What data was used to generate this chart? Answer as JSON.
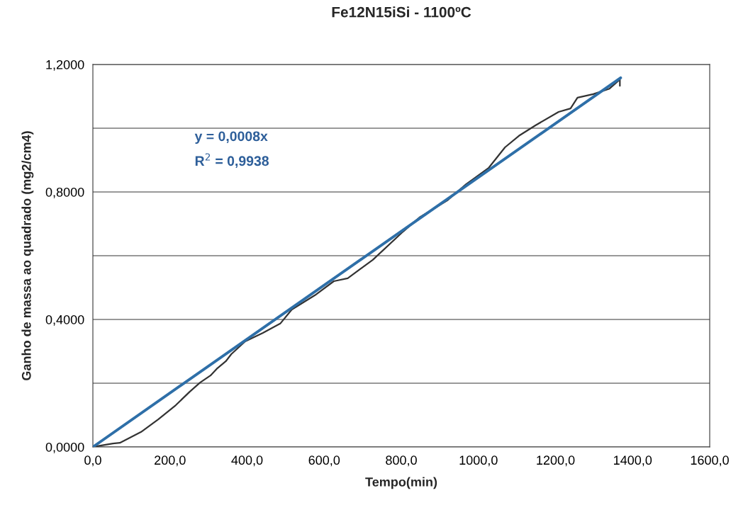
{
  "chart_data": {
    "type": "line",
    "title": "Fe12N15iSi - 1100ºC",
    "xlabel": "Tempo(min)",
    "ylabel": "Ganho de massa ao quadrado (mg2/cm4)",
    "series": [
      {
        "color": "#333333",
        "x": [
          0,
          52,
          70,
          125,
          170,
          215,
          251,
          278,
          305,
          323,
          345,
          359,
          377,
          395,
          441,
          486,
          516,
          576,
          625,
          661,
          726,
          805,
          847,
          919,
          968,
          1027,
          1069,
          1105,
          1148,
          1208,
          1239,
          1257,
          1298,
          1340,
          1367,
          1367
        ],
        "values": [
          0,
          0.011,
          0.013,
          0.047,
          0.087,
          0.131,
          0.173,
          0.202,
          0.224,
          0.247,
          0.269,
          0.291,
          0.311,
          0.331,
          0.358,
          0.387,
          0.431,
          0.476,
          0.52,
          0.529,
          0.587,
          0.676,
          0.72,
          0.773,
          0.824,
          0.876,
          0.94,
          0.976,
          1.009,
          1.051,
          1.062,
          1.096,
          1.107,
          1.124,
          1.153,
          1.133
        ]
      },
      {
        "color": "#2e6fa8",
        "x": [
          0,
          1369
        ],
        "values": [
          0,
          1.158
        ]
      }
    ],
    "annotations": [
      "y = 0,0008x",
      "R$^{2}$ = 0,9938"
    ],
    "xlim": [
      0,
      1600
    ],
    "ylim": [
      0,
      1.2
    ],
    "xticks": [
      {
        "value": 0,
        "label": "0,0"
      },
      {
        "value": 200,
        "label": "200,0"
      },
      {
        "value": 400,
        "label": "400,0"
      },
      {
        "value": 600,
        "label": "600,0"
      },
      {
        "value": 800,
        "label": "800,0"
      },
      {
        "value": 1000,
        "label": "1000,0"
      },
      {
        "value": 1200,
        "label": "1200,0"
      },
      {
        "value": 1400,
        "label": "1400,0"
      },
      {
        "value": 1600,
        "label": "1600,0"
      }
    ],
    "yticks": [
      {
        "value": 0,
        "label": "0,0000"
      },
      {
        "value": 0.2,
        "label": null
      },
      {
        "value": 0.4,
        "label": "0,4000"
      },
      {
        "value": 0.6,
        "label": null
      },
      {
        "value": 0.8,
        "label": "0,8000"
      },
      {
        "value": 1.0,
        "label": null
      },
      {
        "value": 1.2,
        "label": "1,2000"
      }
    ],
    "grid": "y",
    "legend": false
  }
}
